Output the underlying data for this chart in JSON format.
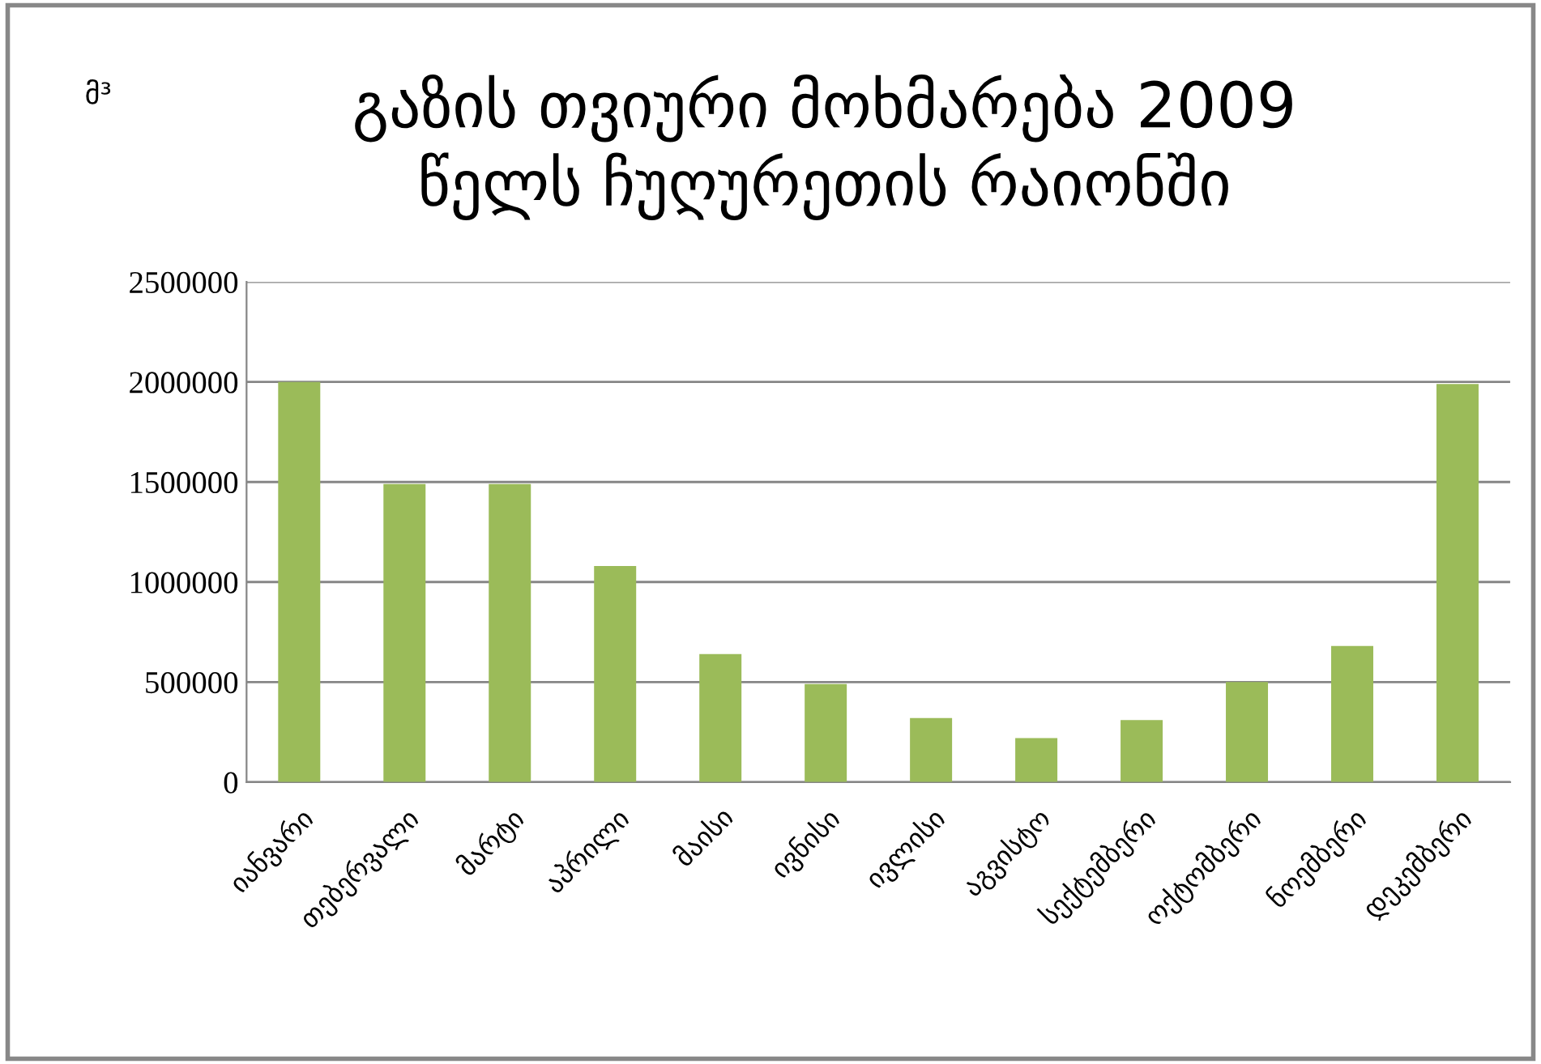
{
  "chart_data": {
    "type": "bar",
    "title": "გაზის თვიური მოხმარება 2009\nწელს ჩუღურეთის რაიონში",
    "annotations": [
      "მ³"
    ],
    "categories": [
      "იანვარი",
      "თებერვალი",
      "მარტი",
      "აპრილი",
      "მაისი",
      "ივნისი",
      "ივლისი",
      "აგვისტო",
      "სექტემბერი",
      "ოქტომბერი",
      "ნოემბერი",
      "დეკემბერი"
    ],
    "values": [
      2000000,
      1490000,
      1490000,
      1080000,
      640000,
      490000,
      320000,
      220000,
      310000,
      500000,
      680000,
      1990000
    ],
    "color": "#9bbb59",
    "ylim": [
      0,
      2500000
    ],
    "yticks": [
      0,
      500000,
      1000000,
      1500000,
      2000000,
      2500000
    ],
    "grid": "y"
  }
}
